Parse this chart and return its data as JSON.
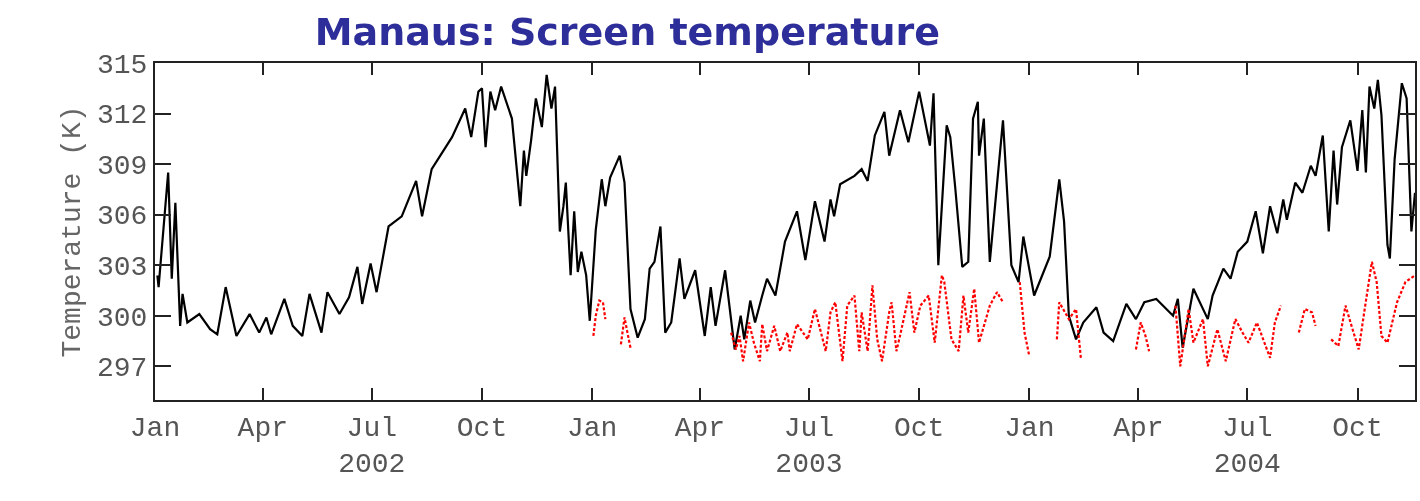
{
  "chart_data": {
    "type": "line",
    "title": "Manaus: Screen temperature",
    "ylabel": "Temperature (K)",
    "xlim": [
      "2002-01-01",
      "2004-11-18"
    ],
    "ylim": [
      295,
      315
    ],
    "yticks": [
      297,
      300,
      303,
      306,
      309,
      312,
      315
    ],
    "xticks": [
      {
        "value": "2002-01-01",
        "label": "Jan"
      },
      {
        "value": "2002-04-01",
        "label": "Apr"
      },
      {
        "value": "2002-07-01",
        "label": "Jul\n2002"
      },
      {
        "value": "2002-10-01",
        "label": "Oct"
      },
      {
        "value": "2003-01-01",
        "label": "Jan"
      },
      {
        "value": "2003-04-01",
        "label": "Apr"
      },
      {
        "value": "2003-07-01",
        "label": "Jul\n2003"
      },
      {
        "value": "2003-10-01",
        "label": "Oct"
      },
      {
        "value": "2004-01-01",
        "label": "Jan"
      },
      {
        "value": "2004-04-01",
        "label": "Apr"
      },
      {
        "value": "2004-07-01",
        "label": "Jul\n2004"
      },
      {
        "value": "2004-10-01",
        "label": "Oct"
      }
    ],
    "marker": "none",
    "series": [
      {
        "color": "#000000",
        "line_style": "solid",
        "x": [
          "2002-01-03",
          "2002-01-04",
          "2002-01-12",
          "2002-01-15",
          "2002-01-18",
          "2002-01-22",
          "2002-01-24",
          "2002-01-28",
          "2002-02-07",
          "2002-02-16",
          "2002-02-22",
          "2002-03-01",
          "2002-03-10",
          "2002-03-21",
          "2002-03-29",
          "2002-04-04",
          "2002-04-08",
          "2002-04-19",
          "2002-04-26",
          "2002-05-04",
          "2002-05-10",
          "2002-05-20",
          "2002-05-25",
          "2002-06-04",
          "2002-06-12",
          "2002-06-19",
          "2002-06-23",
          "2002-06-30",
          "2002-07-05",
          "2002-07-15",
          "2002-07-26",
          "2002-08-07",
          "2002-08-12",
          "2002-08-20",
          "2002-09-06",
          "2002-09-17",
          "2002-09-22",
          "2002-09-28",
          "2002-10-01",
          "2002-10-04",
          "2002-10-08",
          "2002-10-12",
          "2002-10-17",
          "2002-10-26",
          "2002-11-02",
          "2002-11-05",
          "2002-11-07",
          "2002-11-11",
          "2002-11-15",
          "2002-11-20",
          "2002-11-24",
          "2002-11-28",
          "2002-12-01",
          "2002-12-05",
          "2002-12-08",
          "2002-12-10",
          "2002-12-14",
          "2002-12-17",
          "2002-12-20",
          "2002-12-23",
          "2002-12-27",
          "2002-12-30",
          "2003-01-04",
          "2003-01-09",
          "2003-01-12",
          "2003-01-16",
          "2003-01-24",
          "2003-01-28",
          "2003-02-02",
          "2003-02-08",
          "2003-02-14",
          "2003-02-18",
          "2003-02-22",
          "2003-02-27",
          "2003-03-03",
          "2003-03-08",
          "2003-03-15",
          "2003-03-19",
          "2003-03-28",
          "2003-04-05",
          "2003-04-10",
          "2003-04-14",
          "2003-04-22",
          "2003-04-30",
          "2003-05-05",
          "2003-05-08",
          "2003-05-13",
          "2003-05-17",
          "2003-05-23",
          "2003-05-27",
          "2003-06-03",
          "2003-06-11",
          "2003-06-21",
          "2003-06-28",
          "2003-07-06",
          "2003-07-14",
          "2003-07-19",
          "2003-07-22",
          "2003-07-27",
          "2003-08-08",
          "2003-08-14",
          "2003-08-19",
          "2003-08-25",
          "2003-09-02",
          "2003-09-06",
          "2003-09-15",
          "2003-09-22",
          "2003-10-01",
          "2003-10-10",
          "2003-10-13",
          "2003-10-17",
          "2003-10-24",
          "2003-10-27",
          "2003-10-31",
          "2003-11-06",
          "2003-11-11",
          "2003-11-15",
          "2003-11-19",
          "2003-11-20",
          "2003-11-24",
          "2003-11-29",
          "2003-12-10",
          "2003-12-17",
          "2003-12-23",
          "2003-12-27",
          "2004-01-05",
          "2004-01-18",
          "2004-01-26",
          "2004-01-30",
          "2004-02-03",
          "2004-02-09",
          "2004-02-15",
          "2004-02-26",
          "2004-03-03",
          "2004-03-11",
          "2004-03-22",
          "2004-03-30",
          "2004-04-06",
          "2004-04-16",
          "2004-04-30",
          "2004-05-04",
          "2004-05-08",
          "2004-05-17",
          "2004-05-29",
          "2004-06-02",
          "2004-06-11",
          "2004-06-17",
          "2004-06-23",
          "2004-07-01",
          "2004-07-08",
          "2004-07-14",
          "2004-07-20",
          "2004-07-26",
          "2004-07-31",
          "2004-08-03",
          "2004-08-10",
          "2004-08-16",
          "2004-08-23",
          "2004-08-27",
          "2004-09-02",
          "2004-09-07",
          "2004-09-11",
          "2004-09-14",
          "2004-09-18",
          "2004-09-25",
          "2004-10-01",
          "2004-10-05",
          "2004-10-08",
          "2004-10-11",
          "2004-10-15",
          "2004-10-18",
          "2004-10-21",
          "2004-10-26",
          "2004-10-28",
          "2004-11-01",
          "2004-11-07",
          "2004-11-11",
          "2004-11-15",
          "2004-11-18"
        ],
        "values": [
          302.4,
          301.7,
          308.5,
          302.2,
          306.7,
          299.4,
          301.3,
          299.6,
          300.1,
          299.2,
          298.9,
          301.7,
          298.8,
          300.1,
          299.0,
          299.9,
          298.9,
          301.0,
          299.4,
          298.8,
          301.3,
          299.0,
          301.4,
          300.1,
          301.1,
          302.9,
          300.7,
          303.1,
          301.4,
          305.3,
          305.9,
          308.0,
          305.9,
          308.7,
          310.6,
          312.3,
          310.6,
          313.3,
          313.5,
          310.0,
          313.3,
          312.2,
          313.6,
          311.7,
          306.5,
          309.8,
          308.3,
          310.4,
          312.9,
          311.2,
          314.3,
          312.3,
          313.6,
          305.0,
          306.5,
          307.9,
          302.4,
          306.2,
          302.6,
          303.8,
          302.4,
          299.7,
          305.1,
          308.1,
          306.5,
          308.2,
          309.5,
          307.9,
          300.4,
          298.7,
          299.8,
          302.8,
          303.2,
          305.3,
          299.0,
          299.6,
          303.4,
          301.0,
          302.7,
          298.8,
          301.7,
          299.4,
          302.7,
          298.0,
          300.0,
          298.6,
          300.9,
          299.6,
          301.2,
          302.2,
          301.2,
          304.4,
          306.2,
          303.3,
          306.8,
          304.4,
          306.9,
          305.9,
          307.8,
          308.3,
          308.7,
          308.0,
          310.7,
          312.1,
          309.5,
          312.2,
          310.3,
          313.3,
          310.1,
          313.2,
          303.0,
          311.3,
          310.6,
          307.7,
          302.9,
          303.2,
          311.7,
          312.7,
          309.5,
          311.7,
          303.2,
          311.6,
          303.0,
          302.0,
          304.7,
          301.2,
          303.5,
          308.1,
          305.6,
          300.0,
          298.6,
          299.6,
          300.5,
          299.0,
          298.5,
          300.7,
          299.8,
          300.8,
          301.0,
          300.0,
          301.0,
          298.1,
          301.6,
          299.8,
          301.2,
          302.8,
          302.2,
          303.8,
          304.4,
          306.2,
          303.7,
          306.5,
          304.9,
          306.9,
          305.7,
          307.9,
          307.3,
          308.9,
          308.3,
          310.7,
          305.0,
          309.8,
          306.6,
          310.0,
          311.6,
          308.6,
          312.2,
          308.5,
          313.6,
          312.3,
          314.0,
          311.9,
          304.2,
          303.4,
          309.3,
          313.8,
          312.9,
          305.0,
          307.3
        ]
      },
      {
        "color": "#ff0000",
        "line_style": "dotted",
        "x": [
          "2003-01-02",
          "2003-01-04",
          "2003-01-07",
          "2003-01-10",
          "2003-01-12",
          "2003-01-18",
          "2003-01-25",
          "2003-01-28",
          "2003-01-31",
          "2003-02-02",
          "2003-04-20",
          "2003-04-27",
          "2003-05-01",
          "2003-05-04",
          "2003-05-07",
          "2003-05-12",
          "2003-05-16",
          "2003-05-21",
          "2003-05-23",
          "2003-05-27",
          "2003-06-02",
          "2003-06-07",
          "2003-06-13",
          "2003-06-15",
          "2003-06-21",
          "2003-06-30",
          "2003-07-06",
          "2003-07-15",
          "2003-07-19",
          "2003-07-23",
          "2003-07-29",
          "2003-08-02",
          "2003-08-08",
          "2003-08-12",
          "2003-08-14",
          "2003-08-19",
          "2003-08-23",
          "2003-08-27",
          "2003-08-31",
          "2003-09-06",
          "2003-09-08",
          "2003-09-12",
          "2003-09-15",
          "2003-09-23",
          "2003-09-27",
          "2003-10-02",
          "2003-10-09",
          "2003-10-14",
          "2003-10-20",
          "2003-10-22",
          "2003-10-28",
          "2003-11-03",
          "2003-11-07",
          "2003-11-11",
          "2003-11-16",
          "2003-11-20",
          "2003-11-29",
          "2003-12-05",
          "2003-12-10",
          "2003-12-16",
          "2003-12-24",
          "2003-12-28",
          "2004-01-01",
          "2004-01-12",
          "2004-01-24",
          "2004-01-26",
          "2004-02-03",
          "2004-02-09",
          "2004-02-13",
          "2004-03-20",
          "2004-03-30",
          "2004-04-03",
          "2004-04-07",
          "2004-04-10",
          "2004-04-20",
          "2004-05-02",
          "2004-05-06",
          "2004-05-13",
          "2004-05-17",
          "2004-05-25",
          "2004-05-29",
          "2004-06-06",
          "2004-06-13",
          "2004-06-21",
          "2004-06-27",
          "2004-07-02",
          "2004-07-09",
          "2004-07-20",
          "2004-07-24",
          "2004-07-29",
          "2004-08-05",
          "2004-08-13",
          "2004-08-18",
          "2004-08-24",
          "2004-08-27",
          "2004-09-04",
          "2004-09-09",
          "2004-09-12",
          "2004-09-15",
          "2004-09-21",
          "2004-09-26",
          "2004-10-02",
          "2004-10-07",
          "2004-10-13",
          "2004-10-17",
          "2004-10-21",
          "2004-10-26",
          "2004-11-03",
          "2004-11-10",
          "2004-11-18"
        ],
        "values": [
          298.8,
          300.0,
          300.9,
          300.8,
          299.8,
          null,
          298.3,
          299.9,
          298.8,
          298.1,
          null,
          299.0,
          298.0,
          298.8,
          297.3,
          299.6,
          298.4,
          297.3,
          299.5,
          297.9,
          299.4,
          297.9,
          299.0,
          297.9,
          299.5,
          298.6,
          300.4,
          297.9,
          300.2,
          300.8,
          297.3,
          300.6,
          301.2,
          297.9,
          300.2,
          297.9,
          301.8,
          298.6,
          297.3,
          300.2,
          300.8,
          297.9,
          298.8,
          301.4,
          299.0,
          300.6,
          301.2,
          298.4,
          302.4,
          302.0,
          298.6,
          297.9,
          301.2,
          299.0,
          301.6,
          298.4,
          300.6,
          301.4,
          300.8,
          null,
          302.0,
          299.0,
          297.6,
          null,
          298.6,
          300.8,
          299.8,
          300.4,
          297.5,
          null,
          298.0,
          299.6,
          298.8,
          297.9,
          null,
          300.6,
          297.0,
          300.4,
          298.4,
          299.8,
          297.0,
          299.2,
          297.3,
          299.8,
          299.0,
          298.4,
          299.6,
          297.5,
          299.6,
          300.6,
          null,
          299.0,
          300.4,
          300.2,
          299.4,
          null,
          298.6,
          298.4,
          298.2,
          300.6,
          299.4,
          298.0,
          300.4,
          303.2,
          302.0,
          298.8,
          298.4,
          300.8,
          302.0,
          302.4
        ]
      }
    ]
  }
}
